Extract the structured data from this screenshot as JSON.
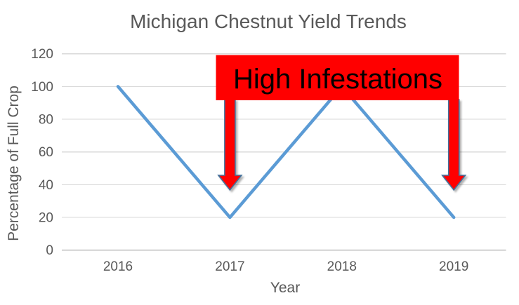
{
  "chart_data": {
    "type": "line",
    "title": "Michigan Chestnut Yield Trends",
    "xlabel": "Year",
    "ylabel": "Percentage of Full Crop",
    "categories": [
      "2016",
      "2017",
      "2018",
      "2019"
    ],
    "values": [
      100,
      20,
      100,
      20
    ],
    "ylim": [
      0,
      120
    ],
    "yticks": [
      0,
      20,
      40,
      60,
      80,
      100,
      120
    ],
    "grid": true,
    "legend": "none",
    "annotation": {
      "label": "High Infestations",
      "arrow_targets": [
        "2017",
        "2019"
      ]
    }
  },
  "style": {
    "background": "#FFFFFF",
    "line_color": "#5B9BD5",
    "grid_color": "#D9D9D9",
    "axis_line_color": "#BFBFBF",
    "text_color": "#595959",
    "annotation_box_color": "#FF0000",
    "annotation_text_color": "#000000",
    "arrow_fill_color": "#FF0000",
    "arrow_outline_color": "#41719C"
  }
}
